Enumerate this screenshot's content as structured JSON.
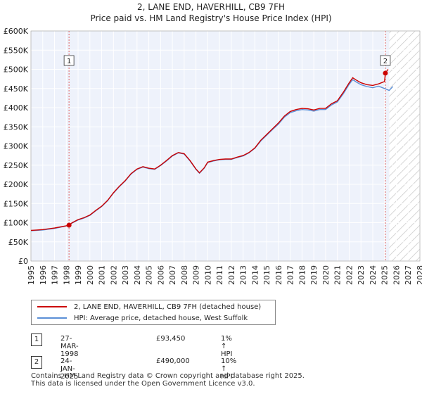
{
  "chart_data": {
    "type": "line",
    "title": "2, LANE END, HAVERHILL, CB9 7FH",
    "subtitle": "Price paid vs. HM Land Registry's House Price Index (HPI)",
    "xlim": [
      1995,
      2028
    ],
    "ylim": [
      0,
      600000
    ],
    "y_ticks": [
      0,
      50000,
      100000,
      150000,
      200000,
      250000,
      300000,
      350000,
      400000,
      450000,
      500000,
      550000,
      600000
    ],
    "y_tick_labels": [
      "£0",
      "£50K",
      "£100K",
      "£150K",
      "£200K",
      "£250K",
      "£300K",
      "£350K",
      "£400K",
      "£450K",
      "£500K",
      "£550K",
      "£600K"
    ],
    "x_ticks": [
      1995,
      1996,
      1997,
      1998,
      1999,
      2000,
      2001,
      2002,
      2003,
      2004,
      2005,
      2006,
      2007,
      2008,
      2009,
      2010,
      2011,
      2012,
      2013,
      2014,
      2015,
      2016,
      2017,
      2018,
      2019,
      2020,
      2021,
      2022,
      2023,
      2024,
      2025,
      2026,
      2027,
      2028
    ],
    "grid": true,
    "projection_start": 2025.4,
    "colors": {
      "price": "#cc0000",
      "hpi": "#5b8fd6",
      "plot_bg": "#eef2fb",
      "vline": "#e06060"
    },
    "series": [
      {
        "name": "2, LANE END, HAVERHILL, CB9 7FH (detached house)",
        "x": [
          1995.0,
          1995.5,
          1996.0,
          1996.5,
          1997.0,
          1997.5,
          1998.0,
          1998.23,
          1998.5,
          1999.0,
          1999.5,
          2000.0,
          2000.5,
          2001.0,
          2001.5,
          2002.0,
          2002.5,
          2003.0,
          2003.5,
          2004.0,
          2004.5,
          2005.0,
          2005.5,
          2006.0,
          2006.5,
          2007.0,
          2007.5,
          2008.0,
          2008.5,
          2009.0,
          2009.3,
          2009.7,
          2010.0,
          2010.5,
          2011.0,
          2011.5,
          2012.0,
          2012.5,
          2013.0,
          2013.5,
          2014.0,
          2014.5,
          2015.0,
          2015.5,
          2016.0,
          2016.5,
          2017.0,
          2017.5,
          2018.0,
          2018.5,
          2019.0,
          2019.5,
          2020.0,
          2020.5,
          2021.0,
          2021.5,
          2022.0,
          2022.3,
          2022.6,
          2023.0,
          2023.5,
          2024.0,
          2024.5,
          2025.0,
          2025.07,
          2025.3
        ],
        "y": [
          80000,
          81000,
          82000,
          84000,
          86000,
          89000,
          92000,
          93450,
          100000,
          108000,
          113000,
          120000,
          132000,
          143000,
          158000,
          178000,
          195000,
          210000,
          228000,
          240000,
          246000,
          242000,
          240000,
          250000,
          262000,
          275000,
          283000,
          280000,
          262000,
          240000,
          230000,
          243000,
          258000,
          262000,
          265000,
          266000,
          266000,
          271000,
          275000,
          283000,
          295000,
          315000,
          330000,
          345000,
          360000,
          378000,
          390000,
          395000,
          398000,
          397000,
          394000,
          398000,
          398000,
          410000,
          418000,
          440000,
          465000,
          478000,
          472000,
          465000,
          460000,
          458000,
          462000,
          468000,
          490000,
          500000
        ]
      },
      {
        "name": "HPI: Average price, detached house, West Suffolk",
        "x": [
          1995.0,
          1995.5,
          1996.0,
          1996.5,
          1997.0,
          1997.5,
          1998.0,
          1998.5,
          1999.0,
          1999.5,
          2000.0,
          2000.5,
          2001.0,
          2001.5,
          2002.0,
          2002.5,
          2003.0,
          2003.5,
          2004.0,
          2004.5,
          2005.0,
          2005.5,
          2006.0,
          2006.5,
          2007.0,
          2007.5,
          2008.0,
          2008.5,
          2009.0,
          2009.3,
          2009.7,
          2010.0,
          2010.5,
          2011.0,
          2011.5,
          2012.0,
          2012.5,
          2013.0,
          2013.5,
          2014.0,
          2014.5,
          2015.0,
          2015.5,
          2016.0,
          2016.5,
          2017.0,
          2017.5,
          2018.0,
          2018.5,
          2019.0,
          2019.5,
          2020.0,
          2020.5,
          2021.0,
          2021.5,
          2022.0,
          2022.3,
          2022.6,
          2023.0,
          2023.5,
          2024.0,
          2024.5,
          2025.0,
          2025.4,
          2025.7
        ],
        "y": [
          79000,
          80000,
          81000,
          83000,
          85000,
          88000,
          91500,
          99000,
          107000,
          112000,
          119000,
          131000,
          142000,
          157000,
          177000,
          194000,
          209000,
          227000,
          239000,
          245000,
          241000,
          239000,
          249000,
          261000,
          274000,
          282000,
          279000,
          261000,
          239000,
          229000,
          242000,
          257000,
          261000,
          264000,
          265000,
          265000,
          270000,
          274000,
          282000,
          294000,
          313000,
          328000,
          343000,
          357000,
          375000,
          387000,
          392000,
          395000,
          394000,
          391000,
          395000,
          395000,
          407000,
          415000,
          436000,
          461000,
          473000,
          467000,
          460000,
          455000,
          452000,
          456000,
          450000,
          445000,
          455000
        ]
      }
    ],
    "annotations": [
      {
        "label": "1",
        "x": 1998.23,
        "y": 93450
      },
      {
        "label": "2",
        "x": 2025.07,
        "y": 490000
      }
    ]
  },
  "legend": {
    "price_label": "2, LANE END, HAVERHILL, CB9 7FH (detached house)",
    "hpi_label": "HPI: Average price, detached house, West Suffolk"
  },
  "transactions": [
    {
      "num": "1",
      "date": "27-MAR-1998",
      "price": "£93,450",
      "hpi": "1% ↑ HPI"
    },
    {
      "num": "2",
      "date": "24-JAN-2025",
      "price": "£490,000",
      "hpi": "10% ↑ HPI"
    }
  ],
  "footer": {
    "line1": "Contains HM Land Registry data © Crown copyright and database right 2025.",
    "line2": "This data is licensed under the Open Government Licence v3.0."
  }
}
